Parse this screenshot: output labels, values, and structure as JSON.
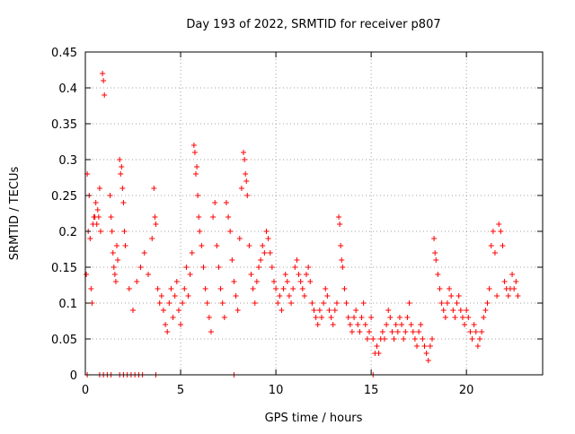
{
  "chart_data": {
    "type": "scatter",
    "title": "Day 193 of 2022, SRMTID for receiver p807",
    "xlabel": "GPS time / hours",
    "ylabel": "SRMTID / TECUs",
    "xlim": [
      0,
      24
    ],
    "ylim": [
      0,
      0.45
    ],
    "xticks": [
      0,
      5,
      10,
      15,
      20
    ],
    "xtick_labels": [
      "0",
      "5",
      "10",
      "15",
      "20"
    ],
    "yticks": [
      0,
      0.05,
      0.1,
      0.15,
      0.2,
      0.25,
      0.3,
      0.35,
      0.4,
      0.45
    ],
    "ytick_labels": [
      "0",
      "0.05",
      "0.1",
      "0.15",
      "0.2",
      "0.25",
      "0.3",
      "0.35",
      "0.4",
      "0.45"
    ],
    "grid": true,
    "marker": "+",
    "marker_color": "#ff0000",
    "series": [
      {
        "name": "SRMTID",
        "points": [
          [
            0.05,
            0.14
          ],
          [
            0.1,
            0.28
          ],
          [
            0.15,
            0.2
          ],
          [
            0.2,
            0.25
          ],
          [
            0.25,
            0.19
          ],
          [
            0.3,
            0.12
          ],
          [
            0.35,
            0.1
          ],
          [
            0.4,
            0.21
          ],
          [
            0.45,
            0.22
          ],
          [
            0.5,
            0.22
          ],
          [
            0.55,
            0.24
          ],
          [
            0.6,
            0.21
          ],
          [
            0.65,
            0.23
          ],
          [
            0.7,
            0.22
          ],
          [
            0.75,
            0.26
          ],
          [
            0.8,
            0.2
          ],
          [
            0.9,
            0.42
          ],
          [
            0.95,
            0.41
          ],
          [
            1.0,
            0.39
          ],
          [
            1.3,
            0.25
          ],
          [
            1.35,
            0.22
          ],
          [
            1.4,
            0.2
          ],
          [
            1.45,
            0.17
          ],
          [
            1.5,
            0.15
          ],
          [
            1.55,
            0.14
          ],
          [
            1.6,
            0.13
          ],
          [
            1.65,
            0.18
          ],
          [
            1.7,
            0.16
          ],
          [
            1.8,
            0.3
          ],
          [
            1.85,
            0.28
          ],
          [
            1.9,
            0.29
          ],
          [
            1.95,
            0.26
          ],
          [
            2.0,
            0.24
          ],
          [
            2.05,
            0.2
          ],
          [
            2.1,
            0.18
          ],
          [
            2.3,
            0.12
          ],
          [
            2.5,
            0.09
          ],
          [
            2.7,
            0.13
          ],
          [
            2.9,
            0.15
          ],
          [
            3.1,
            0.17
          ],
          [
            3.3,
            0.14
          ],
          [
            3.5,
            0.19
          ],
          [
            3.6,
            0.26
          ],
          [
            3.65,
            0.22
          ],
          [
            3.7,
            0.21
          ],
          [
            3.8,
            0.12
          ],
          [
            3.9,
            0.1
          ],
          [
            4.0,
            0.11
          ],
          [
            4.1,
            0.09
          ],
          [
            4.2,
            0.07
          ],
          [
            4.3,
            0.06
          ],
          [
            4.4,
            0.1
          ],
          [
            4.5,
            0.12
          ],
          [
            4.6,
            0.08
          ],
          [
            4.7,
            0.11
          ],
          [
            4.8,
            0.13
          ],
          [
            4.9,
            0.09
          ],
          [
            5.0,
            0.07
          ],
          [
            5.1,
            0.1
          ],
          [
            5.2,
            0.12
          ],
          [
            5.3,
            0.15
          ],
          [
            5.4,
            0.11
          ],
          [
            5.5,
            0.14
          ],
          [
            5.6,
            0.17
          ],
          [
            5.7,
            0.32
          ],
          [
            5.75,
            0.31
          ],
          [
            5.8,
            0.28
          ],
          [
            5.85,
            0.29
          ],
          [
            5.9,
            0.25
          ],
          [
            5.95,
            0.22
          ],
          [
            6.0,
            0.2
          ],
          [
            6.1,
            0.18
          ],
          [
            6.2,
            0.15
          ],
          [
            6.3,
            0.12
          ],
          [
            6.4,
            0.1
          ],
          [
            6.5,
            0.08
          ],
          [
            6.6,
            0.06
          ],
          [
            6.7,
            0.22
          ],
          [
            6.8,
            0.24
          ],
          [
            6.9,
            0.18
          ],
          [
            7.0,
            0.15
          ],
          [
            7.1,
            0.12
          ],
          [
            7.2,
            0.1
          ],
          [
            7.3,
            0.08
          ],
          [
            7.4,
            0.24
          ],
          [
            7.5,
            0.22
          ],
          [
            7.6,
            0.2
          ],
          [
            7.7,
            0.16
          ],
          [
            7.8,
            0.13
          ],
          [
            7.9,
            0.11
          ],
          [
            8.0,
            0.09
          ],
          [
            8.1,
            0.19
          ],
          [
            8.2,
            0.26
          ],
          [
            8.3,
            0.31
          ],
          [
            8.35,
            0.3
          ],
          [
            8.4,
            0.28
          ],
          [
            8.45,
            0.27
          ],
          [
            8.5,
            0.25
          ],
          [
            8.6,
            0.18
          ],
          [
            8.7,
            0.14
          ],
          [
            8.8,
            0.12
          ],
          [
            8.9,
            0.1
          ],
          [
            9.0,
            0.13
          ],
          [
            9.1,
            0.15
          ],
          [
            9.2,
            0.16
          ],
          [
            9.3,
            0.18
          ],
          [
            9.4,
            0.17
          ],
          [
            9.5,
            0.2
          ],
          [
            9.6,
            0.19
          ],
          [
            9.7,
            0.17
          ],
          [
            9.8,
            0.15
          ],
          [
            9.9,
            0.13
          ],
          [
            10.0,
            0.12
          ],
          [
            10.1,
            0.1
          ],
          [
            10.2,
            0.11
          ],
          [
            10.3,
            0.09
          ],
          [
            10.4,
            0.12
          ],
          [
            10.5,
            0.14
          ],
          [
            10.6,
            0.13
          ],
          [
            10.7,
            0.11
          ],
          [
            10.8,
            0.1
          ],
          [
            10.9,
            0.12
          ],
          [
            11.0,
            0.15
          ],
          [
            11.1,
            0.16
          ],
          [
            11.2,
            0.14
          ],
          [
            11.3,
            0.13
          ],
          [
            11.4,
            0.12
          ],
          [
            11.5,
            0.11
          ],
          [
            11.6,
            0.14
          ],
          [
            11.7,
            0.15
          ],
          [
            11.8,
            0.13
          ],
          [
            11.9,
            0.1
          ],
          [
            12.0,
            0.09
          ],
          [
            12.1,
            0.08
          ],
          [
            12.2,
            0.07
          ],
          [
            12.3,
            0.09
          ],
          [
            12.4,
            0.08
          ],
          [
            12.5,
            0.1
          ],
          [
            12.6,
            0.12
          ],
          [
            12.7,
            0.11
          ],
          [
            12.8,
            0.09
          ],
          [
            12.9,
            0.08
          ],
          [
            13.0,
            0.07
          ],
          [
            13.1,
            0.09
          ],
          [
            13.2,
            0.1
          ],
          [
            13.3,
            0.22
          ],
          [
            13.35,
            0.21
          ],
          [
            13.4,
            0.18
          ],
          [
            13.45,
            0.16
          ],
          [
            13.5,
            0.15
          ],
          [
            13.6,
            0.12
          ],
          [
            13.7,
            0.1
          ],
          [
            13.8,
            0.08
          ],
          [
            13.9,
            0.07
          ],
          [
            14.0,
            0.06
          ],
          [
            14.1,
            0.08
          ],
          [
            14.2,
            0.09
          ],
          [
            14.3,
            0.07
          ],
          [
            14.4,
            0.06
          ],
          [
            14.5,
            0.08
          ],
          [
            14.6,
            0.1
          ],
          [
            14.7,
            0.07
          ],
          [
            14.8,
            0.05
          ],
          [
            14.9,
            0.06
          ],
          [
            15.0,
            0.08
          ],
          [
            15.1,
            0.05
          ],
          [
            15.2,
            0.03
          ],
          [
            15.3,
            0.04
          ],
          [
            15.4,
            0.03
          ],
          [
            15.5,
            0.05
          ],
          [
            15.6,
            0.06
          ],
          [
            15.7,
            0.05
          ],
          [
            15.8,
            0.07
          ],
          [
            15.9,
            0.09
          ],
          [
            16.0,
            0.08
          ],
          [
            16.1,
            0.06
          ],
          [
            16.2,
            0.05
          ],
          [
            16.3,
            0.07
          ],
          [
            16.4,
            0.06
          ],
          [
            16.5,
            0.08
          ],
          [
            16.6,
            0.07
          ],
          [
            16.7,
            0.05
          ],
          [
            16.8,
            0.06
          ],
          [
            16.9,
            0.08
          ],
          [
            17.0,
            0.1
          ],
          [
            17.1,
            0.07
          ],
          [
            17.2,
            0.06
          ],
          [
            17.3,
            0.05
          ],
          [
            17.4,
            0.04
          ],
          [
            17.5,
            0.06
          ],
          [
            17.6,
            0.07
          ],
          [
            17.7,
            0.05
          ],
          [
            17.8,
            0.04
          ],
          [
            17.9,
            0.03
          ],
          [
            18.0,
            0.02
          ],
          [
            18.1,
            0.04
          ],
          [
            18.2,
            0.05
          ],
          [
            18.3,
            0.19
          ],
          [
            18.35,
            0.17
          ],
          [
            18.4,
            0.16
          ],
          [
            18.5,
            0.14
          ],
          [
            18.6,
            0.12
          ],
          [
            18.7,
            0.1
          ],
          [
            18.8,
            0.09
          ],
          [
            18.9,
            0.08
          ],
          [
            19.0,
            0.1
          ],
          [
            19.1,
            0.12
          ],
          [
            19.2,
            0.11
          ],
          [
            19.3,
            0.09
          ],
          [
            19.4,
            0.08
          ],
          [
            19.5,
            0.1
          ],
          [
            19.6,
            0.11
          ],
          [
            19.7,
            0.09
          ],
          [
            19.8,
            0.08
          ],
          [
            19.9,
            0.07
          ],
          [
            20.0,
            0.09
          ],
          [
            20.1,
            0.08
          ],
          [
            20.2,
            0.06
          ],
          [
            20.3,
            0.05
          ],
          [
            20.4,
            0.07
          ],
          [
            20.5,
            0.06
          ],
          [
            20.6,
            0.04
          ],
          [
            20.7,
            0.05
          ],
          [
            20.8,
            0.06
          ],
          [
            20.9,
            0.08
          ],
          [
            21.0,
            0.09
          ],
          [
            21.1,
            0.1
          ],
          [
            21.2,
            0.12
          ],
          [
            21.3,
            0.18
          ],
          [
            21.4,
            0.2
          ],
          [
            21.5,
            0.17
          ],
          [
            21.6,
            0.11
          ],
          [
            21.7,
            0.21
          ],
          [
            21.8,
            0.2
          ],
          [
            21.9,
            0.18
          ],
          [
            22.0,
            0.13
          ],
          [
            22.1,
            0.12
          ],
          [
            22.2,
            0.11
          ],
          [
            22.3,
            0.12
          ],
          [
            22.4,
            0.14
          ],
          [
            22.5,
            0.12
          ],
          [
            22.6,
            0.13
          ],
          [
            22.7,
            0.11
          ],
          [
            0.1,
            0.0
          ],
          [
            0.75,
            0.0
          ],
          [
            0.95,
            0.0
          ],
          [
            1.15,
            0.0
          ],
          [
            1.35,
            0.0
          ],
          [
            1.8,
            0.0
          ],
          [
            2.0,
            0.0
          ],
          [
            2.2,
            0.0
          ],
          [
            2.4,
            0.0
          ],
          [
            2.6,
            0.0
          ],
          [
            2.8,
            0.0
          ],
          [
            3.0,
            0.0
          ],
          [
            3.7,
            0.0
          ],
          [
            7.8,
            0.0
          ],
          [
            15.1,
            0.0
          ]
        ]
      }
    ]
  }
}
